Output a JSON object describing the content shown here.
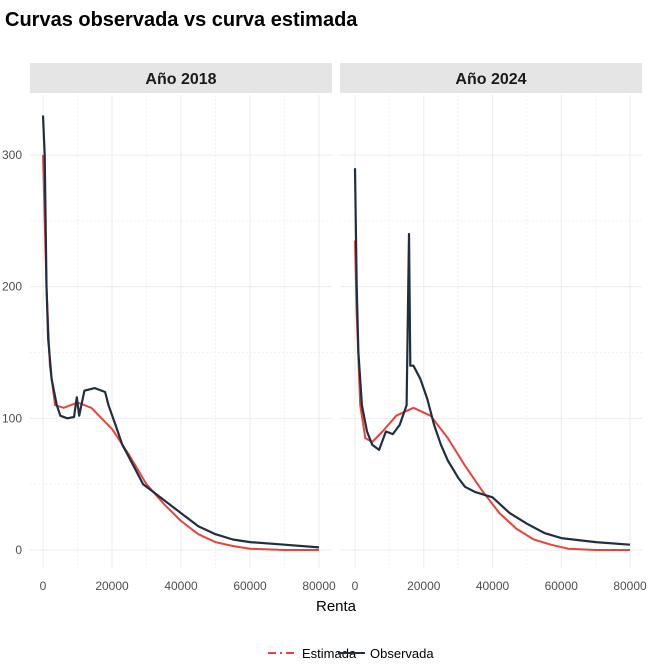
{
  "chart_data": {
    "type": "line",
    "title": "Curvas observada vs curva estimada",
    "xlabel": "Renta",
    "ylabel": "",
    "xlim": [
      0,
      80000
    ],
    "ylim": [
      0,
      330
    ],
    "x_ticks": [
      "0",
      "20000",
      "40000",
      "60000",
      "80000"
    ],
    "y_ticks": [
      "0",
      "100",
      "200",
      "300"
    ],
    "x_tick_values": [
      0,
      20000,
      40000,
      60000,
      80000
    ],
    "y_tick_values": [
      0,
      100,
      200,
      300
    ],
    "legend": {
      "position": "bottom",
      "entries": [
        "Estimada",
        "Observada"
      ]
    },
    "colors": {
      "Estimada": "#e8433a",
      "Observada": "#1f2f40"
    },
    "panels": [
      {
        "label": "Año 2018",
        "series": [
          {
            "name": "Observada",
            "points": [
              [
                0,
                330
              ],
              [
                500,
                300
              ],
              [
                1000,
                200
              ],
              [
                1500,
                160
              ],
              [
                2500,
                130
              ],
              [
                4000,
                110
              ],
              [
                5000,
                102
              ],
              [
                7000,
                100
              ],
              [
                9000,
                101
              ],
              [
                9800,
                116
              ],
              [
                10500,
                102
              ],
              [
                12000,
                121
              ],
              [
                15000,
                123
              ],
              [
                18000,
                120
              ],
              [
                19000,
                110
              ],
              [
                21000,
                95
              ],
              [
                23000,
                80
              ],
              [
                25000,
                70
              ],
              [
                27000,
                60
              ],
              [
                29000,
                50
              ],
              [
                31000,
                46
              ],
              [
                35000,
                38
              ],
              [
                40000,
                28
              ],
              [
                45000,
                18
              ],
              [
                50000,
                12
              ],
              [
                55000,
                8
              ],
              [
                60000,
                6
              ],
              [
                70000,
                4
              ],
              [
                80000,
                2
              ]
            ]
          },
          {
            "name": "Estimada",
            "points": [
              [
                0,
                300
              ],
              [
                1000,
                200
              ],
              [
                2000,
                140
              ],
              [
                3500,
                110
              ],
              [
                6000,
                108
              ],
              [
                10000,
                112
              ],
              [
                14000,
                108
              ],
              [
                20000,
                92
              ],
              [
                25000,
                72
              ],
              [
                30000,
                50
              ],
              [
                35000,
                35
              ],
              [
                40000,
                22
              ],
              [
                45000,
                12
              ],
              [
                50000,
                6
              ],
              [
                55000,
                3
              ],
              [
                60000,
                1
              ],
              [
                70000,
                0
              ],
              [
                80000,
                0
              ]
            ]
          }
        ]
      },
      {
        "label": "Año 2024",
        "series": [
          {
            "name": "Observada",
            "points": [
              [
                0,
                290
              ],
              [
                500,
                200
              ],
              [
                1000,
                150
              ],
              [
                2000,
                110
              ],
              [
                3500,
                90
              ],
              [
                5000,
                80
              ],
              [
                7000,
                76
              ],
              [
                9000,
                90
              ],
              [
                11000,
                88
              ],
              [
                13000,
                95
              ],
              [
                15000,
                110
              ],
              [
                15700,
                240
              ],
              [
                16100,
                140
              ],
              [
                17000,
                140
              ],
              [
                19000,
                130
              ],
              [
                21000,
                115
              ],
              [
                23000,
                95
              ],
              [
                25000,
                80
              ],
              [
                27000,
                68
              ],
              [
                30000,
                55
              ],
              [
                32000,
                48
              ],
              [
                35000,
                44
              ],
              [
                40000,
                40
              ],
              [
                45000,
                28
              ],
              [
                50000,
                20
              ],
              [
                55000,
                13
              ],
              [
                60000,
                9
              ],
              [
                70000,
                6
              ],
              [
                80000,
                4
              ]
            ]
          },
          {
            "name": "Estimada",
            "points": [
              [
                0,
                235
              ],
              [
                500,
                180
              ],
              [
                1500,
                110
              ],
              [
                3000,
                85
              ],
              [
                5000,
                82
              ],
              [
                8000,
                90
              ],
              [
                12000,
                102
              ],
              [
                17000,
                108
              ],
              [
                22000,
                102
              ],
              [
                27000,
                85
              ],
              [
                32000,
                64
              ],
              [
                37000,
                45
              ],
              [
                42000,
                28
              ],
              [
                47000,
                16
              ],
              [
                52000,
                8
              ],
              [
                57000,
                4
              ],
              [
                62000,
                1
              ],
              [
                70000,
                0
              ],
              [
                80000,
                0
              ]
            ]
          }
        ]
      }
    ]
  }
}
